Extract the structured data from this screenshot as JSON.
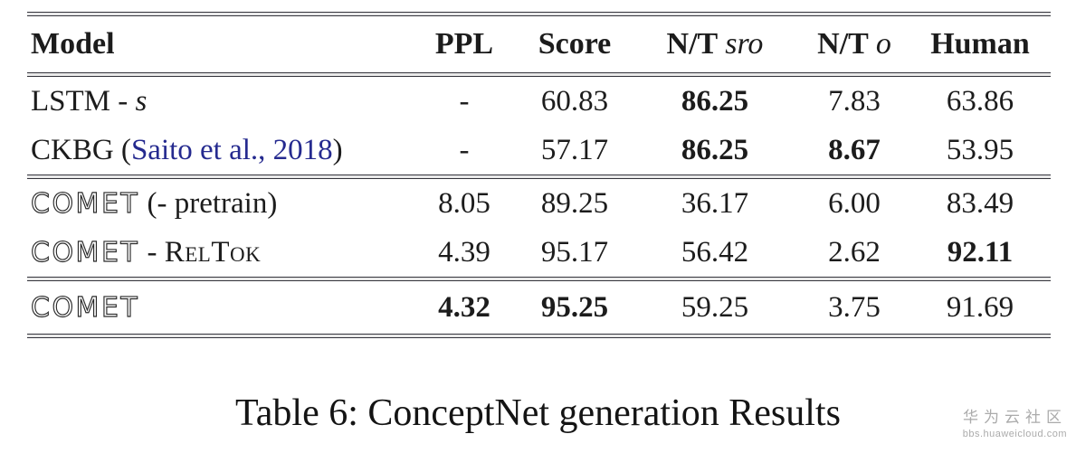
{
  "table": {
    "header": {
      "model": "Model",
      "ppl": "PPL",
      "score": "Score",
      "nt_sro": {
        "prefix": "N/T",
        "var": "sro"
      },
      "nt_o": {
        "prefix": "N/T",
        "var": "o"
      },
      "human": "Human"
    },
    "rows": [
      {
        "model": {
          "text": "LSTM - ",
          "var": "s"
        },
        "ppl": "-",
        "score": "60.83",
        "nt_sro": "86.25",
        "nt_o": "7.83",
        "human": "63.86"
      },
      {
        "model": {
          "text": "CKBG (",
          "citation": "Saito et al., 2018",
          "close": ")"
        },
        "ppl": "-",
        "score": "57.17",
        "nt_sro": "86.25",
        "nt_o": "8.67",
        "human": "53.95"
      },
      {
        "model": {
          "brand": "COMET",
          "text": " (- pretrain)"
        },
        "ppl": "8.05",
        "score": "89.25",
        "nt_sro": "36.17",
        "nt_o": "6.00",
        "human": "83.49"
      },
      {
        "model": {
          "brand": "COMET",
          "text": " - ",
          "smallcaps": "RelTok"
        },
        "ppl": "4.39",
        "score": "95.17",
        "nt_sro": "56.42",
        "nt_o": "2.62",
        "human": "92.11"
      },
      {
        "model": {
          "brand": "COMET"
        },
        "ppl": "4.32",
        "score": "95.25",
        "nt_sro": "59.25",
        "nt_o": "3.75",
        "human": "91.69"
      }
    ]
  },
  "caption": "Table 6: ConceptNet generation Results",
  "watermark": {
    "line1": "华为云社区",
    "line2": "bbs.huaweicloud.com"
  },
  "colors": {
    "citation_blue": "#252a8f",
    "text": "#1c1c1c",
    "watermark_gray": "#ababab"
  }
}
